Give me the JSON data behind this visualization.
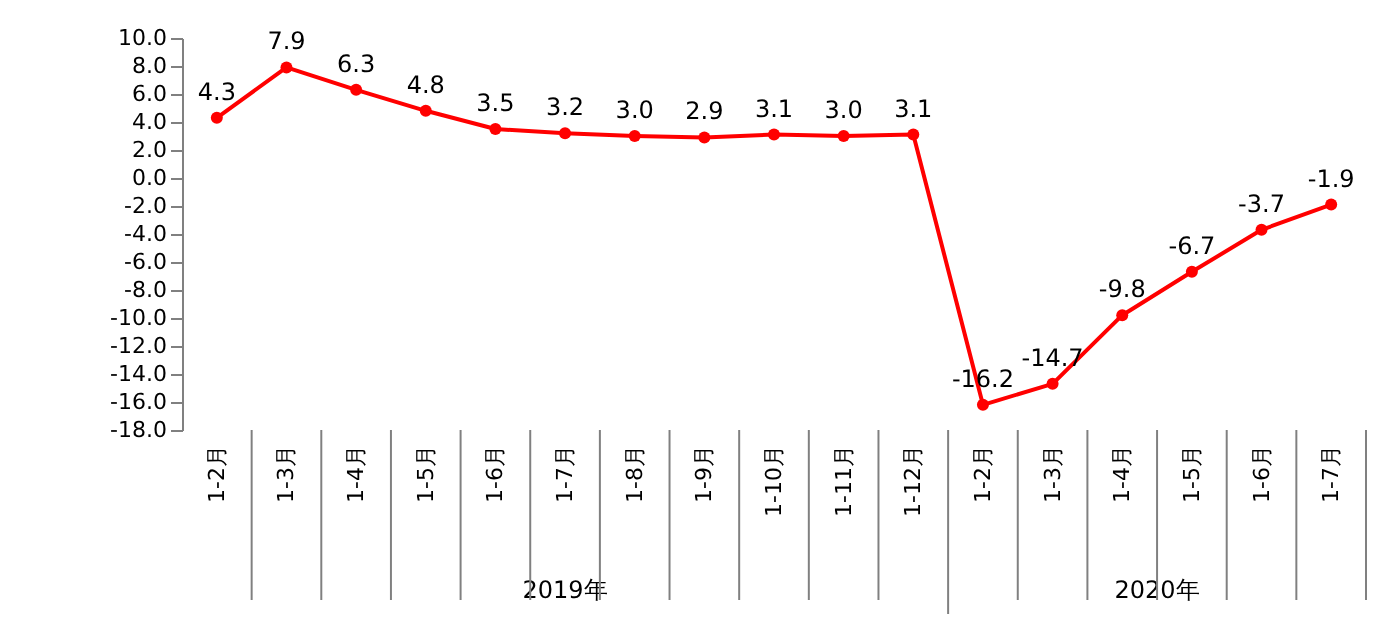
{
  "chart_data": {
    "type": "line",
    "categories": [
      "1-2月",
      "1-3月",
      "1-4月",
      "1-5月",
      "1-6月",
      "1-7月",
      "1-8月",
      "1-9月",
      "1-10月",
      "1-11月",
      "1-12月",
      "1-2月",
      "1-3月",
      "1-4月",
      "1-5月",
      "1-6月",
      "1-7月"
    ],
    "series": [
      {
        "color": "#ff0000",
        "values": [
          4.3,
          7.9,
          6.3,
          4.8,
          3.5,
          3.2,
          3.0,
          2.9,
          3.1,
          3.0,
          3.1,
          -16.2,
          -14.7,
          -9.8,
          -6.7,
          -3.7,
          -1.9
        ],
        "value_labels": [
          "4.3",
          "7.9",
          "6.3",
          "4.8",
          "3.5",
          "3.2",
          "3.0",
          "2.9",
          "3.1",
          "3.0",
          "3.1",
          "-16.2",
          "-14.7",
          "-9.8",
          "-6.7",
          "-3.7",
          "-1.9"
        ]
      }
    ],
    "ylim": [
      -18,
      10
    ],
    "yticks": [
      {
        "value": 10,
        "label": "10.0"
      },
      {
        "value": 8,
        "label": "8.0"
      },
      {
        "value": 6,
        "label": "6.0"
      },
      {
        "value": 4,
        "label": "4.0"
      },
      {
        "value": 2,
        "label": "2.0"
      },
      {
        "value": 0,
        "label": "0.0"
      },
      {
        "value": -2,
        "label": "-2.0"
      },
      {
        "value": -4,
        "label": "-4.0"
      },
      {
        "value": -6,
        "label": "-6.0"
      },
      {
        "value": -8,
        "label": "-8.0"
      },
      {
        "value": -10,
        "label": "-10.0"
      },
      {
        "value": -12,
        "label": "-12.0"
      },
      {
        "value": -14,
        "label": "-14.0"
      },
      {
        "value": -16,
        "label": "-16.0"
      },
      {
        "value": -18,
        "label": "-18.0"
      }
    ],
    "annotations": [
      "2019年",
      "2020年"
    ],
    "marker": "circle",
    "grid": false
  }
}
